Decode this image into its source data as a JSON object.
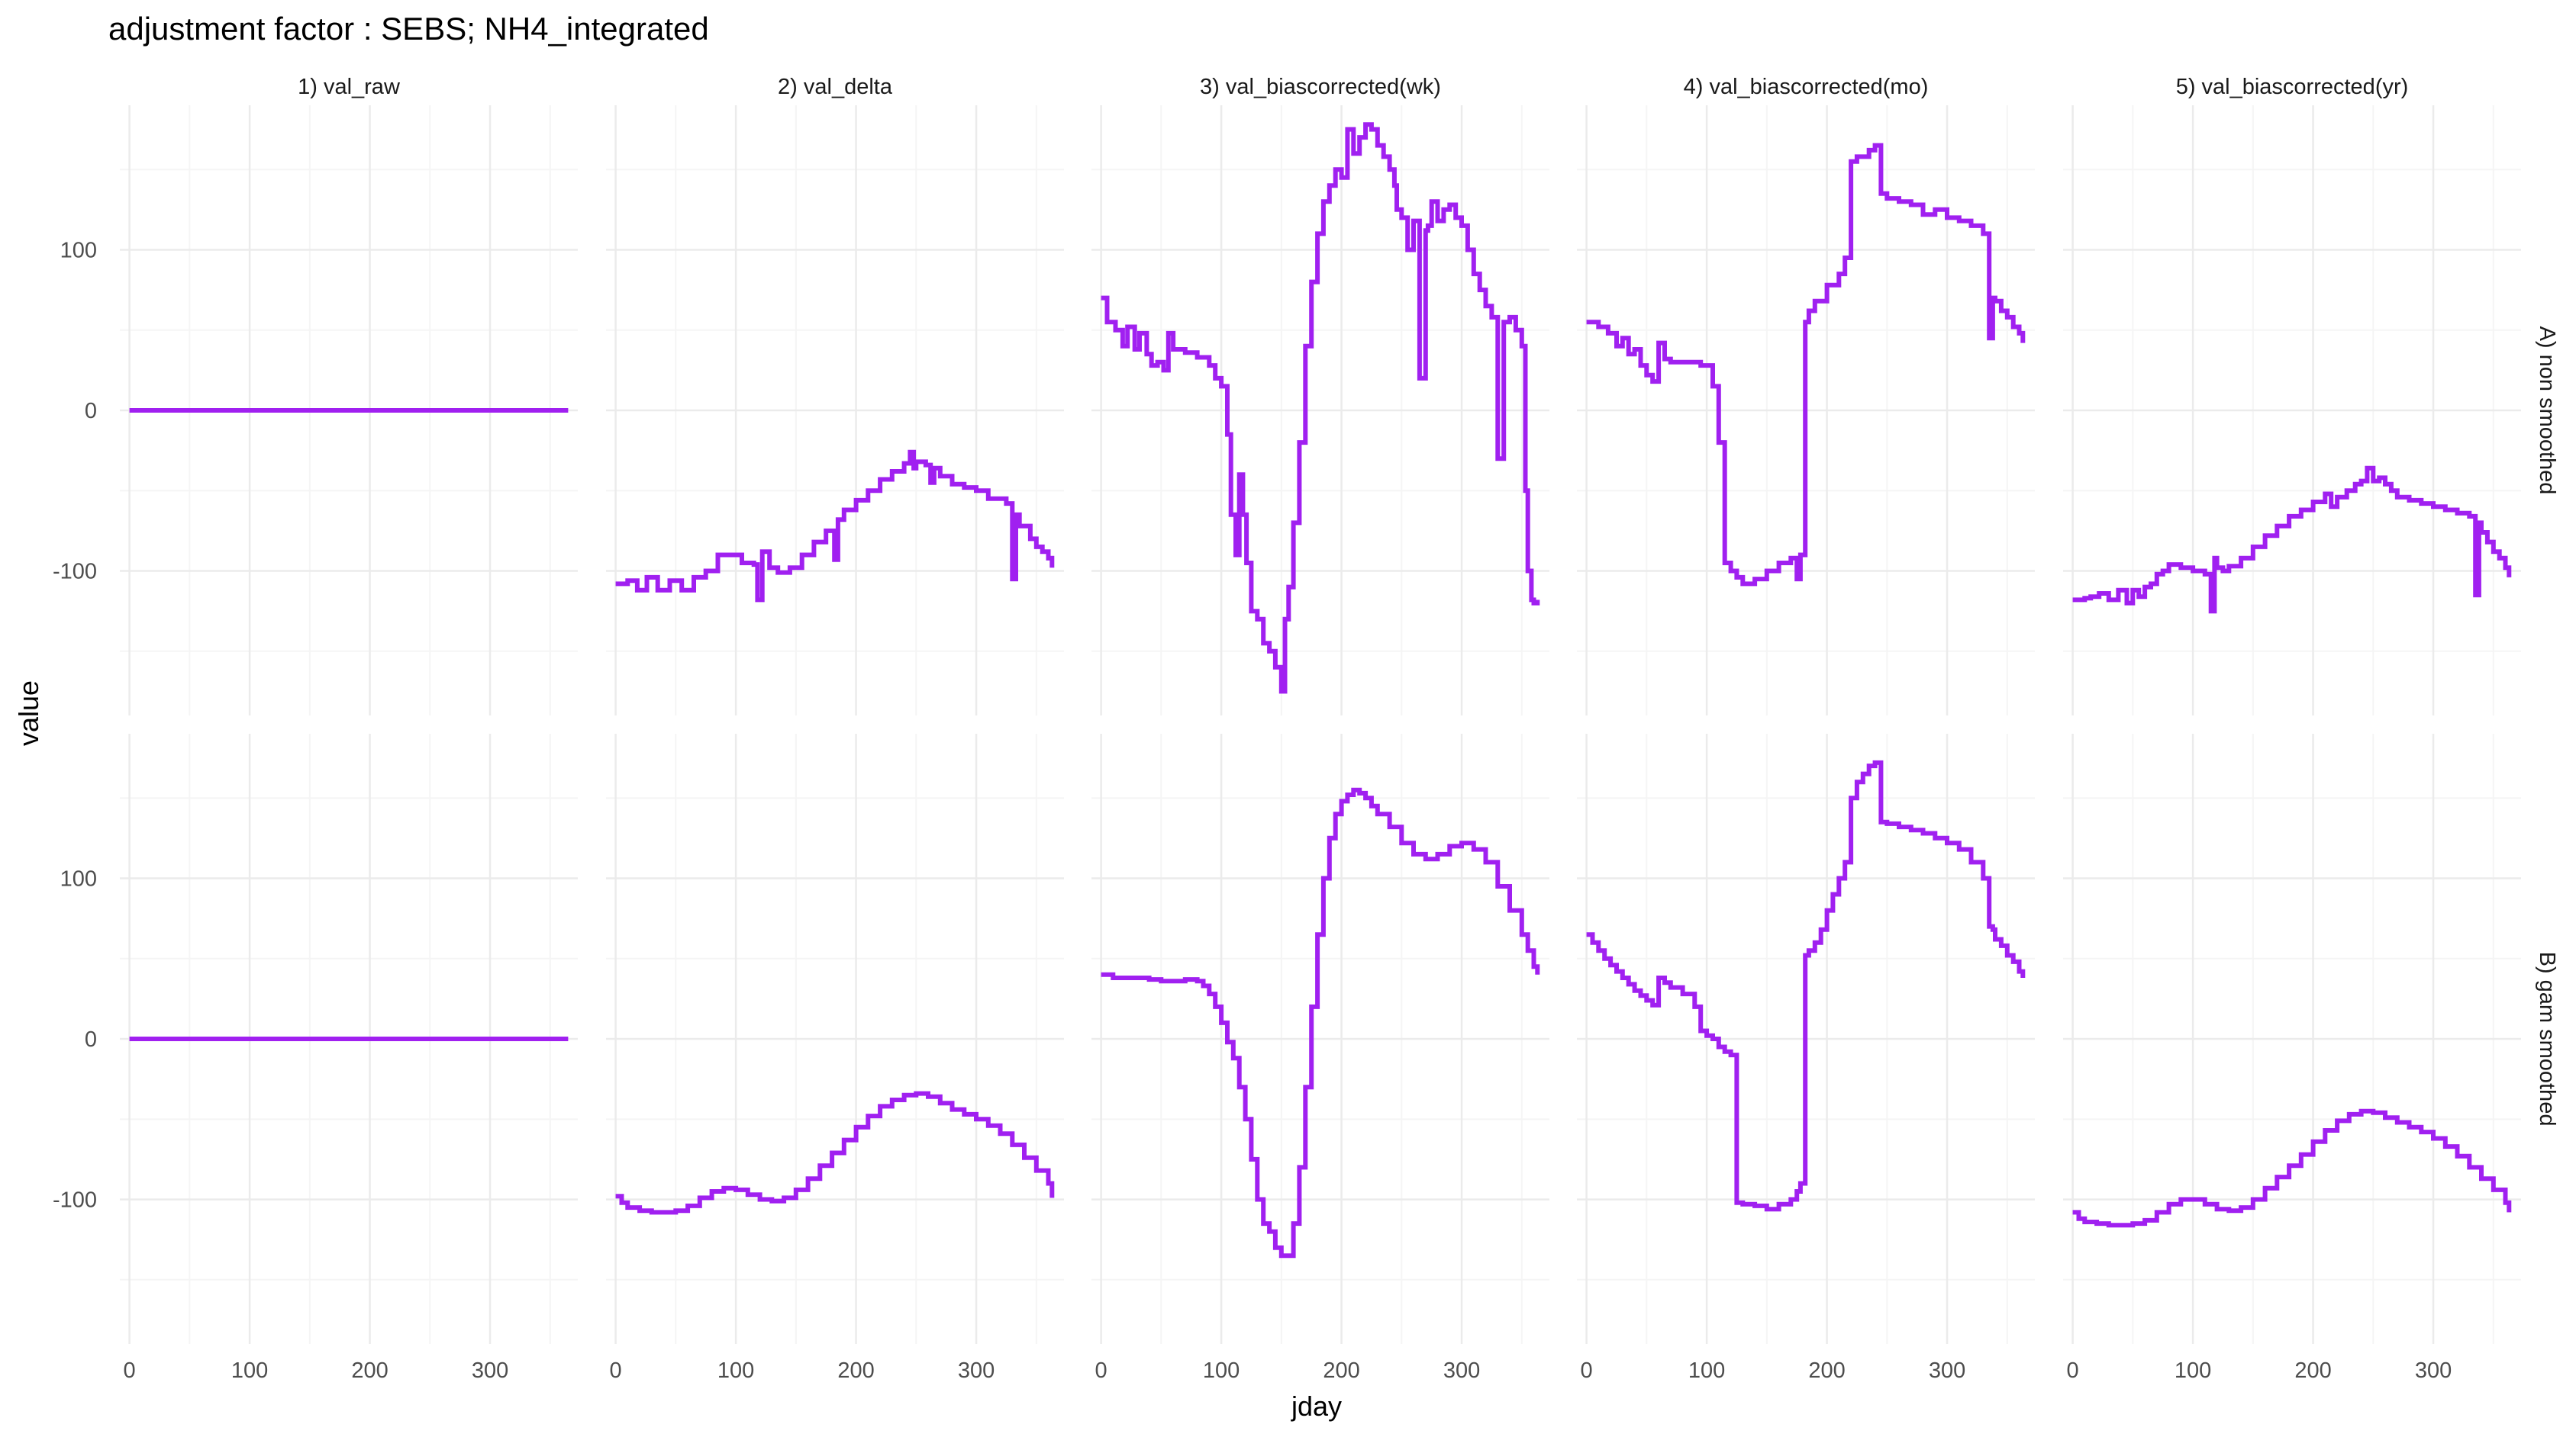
{
  "title": "adjustment factor : SEBS; NH4_integrated",
  "xlabel": "jday",
  "ylabel": "value",
  "colors": {
    "line": "#a020f0",
    "grid_major": "#ebebeb",
    "grid_minor": "#f5f5f5",
    "text": "#4d4d4d",
    "title": "#000000"
  },
  "chart_data": {
    "type": "line",
    "style": "step",
    "grid": true,
    "legend": "none",
    "xlim": [
      -8,
      373
    ],
    "ylim": [
      -190,
      190
    ],
    "x_ticks": [
      0,
      100,
      200,
      300
    ],
    "y_ticks": [
      -100,
      0,
      100
    ],
    "x_tick_labels": [
      "0",
      "100",
      "200",
      "300"
    ],
    "y_tick_labels": [
      "-100",
      "0",
      "100"
    ],
    "columns": [
      "1) val_raw",
      "2) val_delta",
      "3) val_biascorrected(wk)",
      "4) val_biascorrected(mo)",
      "5) val_biascorrected(yr)"
    ],
    "rows": [
      "A) non smoothed",
      "B) gam smoothed"
    ],
    "panels": [
      {
        "row": 0,
        "col": 0,
        "x": [
          0,
          365
        ],
        "y": [
          0,
          0
        ]
      },
      {
        "row": 0,
        "col": 1,
        "x": [
          0,
          10,
          18,
          26,
          35,
          45,
          55,
          65,
          75,
          85,
          95,
          105,
          115,
          118,
          122,
          128,
          135,
          145,
          155,
          165,
          175,
          182,
          185,
          190,
          200,
          210,
          220,
          230,
          240,
          245,
          248,
          250,
          258,
          262,
          265,
          270,
          280,
          290,
          300,
          310,
          325,
          330,
          333,
          336,
          345,
          350,
          355,
          360,
          363
        ],
        "y": [
          -108,
          -106,
          -112,
          -104,
          -112,
          -106,
          -112,
          -104,
          -100,
          -90,
          -90,
          -95,
          -96,
          -118,
          -88,
          -98,
          -101,
          -98,
          -90,
          -82,
          -75,
          -93,
          -68,
          -62,
          -56,
          -50,
          -43,
          -38,
          -33,
          -26,
          -36,
          -32,
          -34,
          -45,
          -36,
          -41,
          -46,
          -48,
          -50,
          -55,
          -58,
          -105,
          -65,
          -72,
          -80,
          -85,
          -88,
          -92,
          -98
        ]
      },
      {
        "row": 0,
        "col": 2,
        "x": [
          0,
          5,
          12,
          18,
          22,
          28,
          32,
          38,
          42,
          47,
          52,
          56,
          60,
          70,
          80,
          90,
          95,
          100,
          105,
          108,
          112,
          115,
          118,
          121,
          125,
          130,
          135,
          140,
          145,
          150,
          153,
          156,
          160,
          165,
          170,
          175,
          180,
          185,
          190,
          195,
          200,
          205,
          210,
          215,
          220,
          225,
          230,
          235,
          240,
          244,
          246,
          250,
          255,
          260,
          265,
          270,
          272,
          275,
          280,
          285,
          290,
          295,
          300,
          305,
          310,
          315,
          320,
          325,
          330,
          335,
          340,
          345,
          350,
          353,
          355,
          358,
          360,
          363
        ],
        "y": [
          70,
          55,
          50,
          40,
          52,
          38,
          48,
          35,
          28,
          30,
          25,
          48,
          38,
          36,
          33,
          28,
          20,
          15,
          -15,
          -65,
          -90,
          -40,
          -65,
          -95,
          -125,
          -130,
          -145,
          -150,
          -160,
          -175,
          -130,
          -110,
          -70,
          -20,
          40,
          80,
          110,
          130,
          140,
          150,
          145,
          175,
          160,
          170,
          178,
          175,
          165,
          158,
          150,
          140,
          125,
          120,
          100,
          118,
          20,
          112,
          115,
          130,
          118,
          125,
          128,
          120,
          115,
          100,
          85,
          75,
          65,
          58,
          -30,
          55,
          58,
          50,
          40,
          -50,
          -100,
          -118,
          -120,
          -118
        ]
      },
      {
        "row": 0,
        "col": 3,
        "x": [
          0,
          10,
          18,
          25,
          30,
          35,
          40,
          45,
          50,
          55,
          60,
          65,
          70,
          80,
          95,
          105,
          110,
          115,
          120,
          125,
          130,
          140,
          150,
          160,
          170,
          175,
          178,
          182,
          185,
          190,
          200,
          210,
          215,
          220,
          225,
          235,
          240,
          245,
          250,
          260,
          270,
          280,
          290,
          300,
          310,
          320,
          330,
          335,
          338,
          340,
          345,
          350,
          355,
          360,
          363
        ],
        "y": [
          55,
          52,
          48,
          40,
          45,
          35,
          38,
          28,
          22,
          18,
          42,
          32,
          30,
          30,
          28,
          15,
          -20,
          -95,
          -100,
          -104,
          -108,
          -105,
          -100,
          -95,
          -92,
          -105,
          -90,
          55,
          62,
          68,
          78,
          85,
          95,
          155,
          158,
          162,
          165,
          135,
          132,
          130,
          128,
          122,
          125,
          120,
          118,
          115,
          110,
          45,
          70,
          68,
          62,
          58,
          52,
          48,
          42
        ]
      },
      {
        "row": 0,
        "col": 4,
        "x": [
          0,
          10,
          15,
          22,
          30,
          38,
          45,
          50,
          55,
          60,
          65,
          70,
          75,
          80,
          90,
          100,
          110,
          115,
          118,
          120,
          125,
          130,
          140,
          150,
          160,
          170,
          180,
          190,
          200,
          210,
          215,
          220,
          228,
          235,
          240,
          245,
          250,
          255,
          260,
          265,
          270,
          280,
          290,
          300,
          310,
          320,
          330,
          335,
          338,
          340,
          345,
          350,
          355,
          360,
          363
        ],
        "y": [
          -118,
          -117,
          -116,
          -114,
          -118,
          -112,
          -120,
          -112,
          -116,
          -110,
          -108,
          -102,
          -100,
          -96,
          -98,
          -100,
          -102,
          -125,
          -92,
          -98,
          -100,
          -97,
          -92,
          -85,
          -78,
          -72,
          -66,
          -62,
          -57,
          -52,
          -60,
          -54,
          -50,
          -46,
          -44,
          -36,
          -44,
          -42,
          -46,
          -50,
          -54,
          -56,
          -58,
          -60,
          -62,
          -64,
          -66,
          -115,
          -70,
          -76,
          -82,
          -88,
          -92,
          -98,
          -104
        ]
      }
    ],
    "smoothed": [
      {
        "row": 1,
        "col": 0,
        "x": [
          0,
          365
        ],
        "y": [
          0,
          0
        ]
      },
      {
        "row": 1,
        "col": 1,
        "x": [
          0,
          5,
          10,
          20,
          30,
          40,
          50,
          60,
          70,
          80,
          90,
          100,
          110,
          120,
          130,
          140,
          150,
          160,
          170,
          180,
          190,
          200,
          210,
          220,
          230,
          240,
          250,
          260,
          270,
          280,
          290,
          300,
          310,
          320,
          330,
          340,
          350,
          360,
          363
        ],
        "y": [
          -98,
          -102,
          -105,
          -107,
          -108,
          -108,
          -107,
          -104,
          -99,
          -95,
          -93,
          -94,
          -97,
          -100,
          -101,
          -99,
          -94,
          -87,
          -79,
          -71,
          -63,
          -55,
          -48,
          -42,
          -38,
          -35,
          -34,
          -36,
          -40,
          -44,
          -47,
          -50,
          -54,
          -59,
          -66,
          -74,
          -82,
          -90,
          -99
        ]
      },
      {
        "row": 1,
        "col": 2,
        "x": [
          0,
          10,
          20,
          30,
          40,
          50,
          60,
          70,
          80,
          85,
          90,
          95,
          100,
          105,
          110,
          115,
          120,
          125,
          130,
          135,
          140,
          145,
          150,
          155,
          160,
          165,
          170,
          175,
          180,
          185,
          190,
          195,
          200,
          205,
          210,
          215,
          220,
          225,
          230,
          240,
          250,
          260,
          270,
          280,
          290,
          300,
          310,
          320,
          330,
          340,
          350,
          355,
          360,
          363
        ],
        "y": [
          40,
          38,
          38,
          38,
          37,
          36,
          36,
          37,
          36,
          33,
          28,
          20,
          10,
          -2,
          -12,
          -30,
          -50,
          -75,
          -100,
          -115,
          -120,
          -130,
          -135,
          -135,
          -115,
          -80,
          -30,
          20,
          65,
          100,
          125,
          140,
          148,
          152,
          155,
          153,
          150,
          145,
          140,
          132,
          122,
          115,
          112,
          115,
          120,
          122,
          118,
          110,
          95,
          80,
          65,
          55,
          45,
          40
        ]
      },
      {
        "row": 1,
        "col": 3,
        "x": [
          0,
          5,
          10,
          15,
          20,
          25,
          30,
          35,
          40,
          45,
          50,
          55,
          60,
          65,
          70,
          80,
          90,
          95,
          100,
          105,
          110,
          115,
          120,
          125,
          130,
          140,
          150,
          160,
          170,
          175,
          178,
          182,
          185,
          190,
          195,
          200,
          205,
          210,
          215,
          220,
          225,
          230,
          235,
          240,
          245,
          250,
          260,
          270,
          280,
          290,
          300,
          310,
          320,
          330,
          335,
          338,
          340,
          345,
          350,
          355,
          360,
          363
        ],
        "y": [
          65,
          60,
          55,
          50,
          46,
          42,
          38,
          34,
          30,
          27,
          24,
          21,
          38,
          35,
          32,
          28,
          20,
          5,
          2,
          0,
          -5,
          -8,
          -10,
          -102,
          -103,
          -104,
          -106,
          -103,
          -100,
          -95,
          -90,
          52,
          55,
          60,
          68,
          80,
          90,
          100,
          110,
          150,
          160,
          165,
          170,
          172,
          135,
          134,
          132,
          130,
          128,
          125,
          122,
          118,
          110,
          100,
          70,
          68,
          62,
          58,
          52,
          48,
          42,
          38
        ]
      },
      {
        "row": 1,
        "col": 4,
        "x": [
          0,
          5,
          10,
          20,
          30,
          40,
          50,
          60,
          70,
          80,
          90,
          100,
          110,
          120,
          130,
          140,
          150,
          160,
          170,
          180,
          190,
          200,
          210,
          220,
          230,
          240,
          250,
          260,
          270,
          280,
          290,
          300,
          310,
          320,
          330,
          340,
          350,
          360,
          363
        ],
        "y": [
          -108,
          -112,
          -114,
          -115,
          -116,
          -116,
          -115,
          -113,
          -108,
          -103,
          -100,
          -100,
          -103,
          -106,
          -107,
          -105,
          -100,
          -93,
          -86,
          -79,
          -72,
          -64,
          -57,
          -51,
          -47,
          -45,
          -46,
          -49,
          -52,
          -55,
          -58,
          -62,
          -67,
          -73,
          -80,
          -87,
          -94,
          -102,
          -108
        ]
      }
    ]
  }
}
